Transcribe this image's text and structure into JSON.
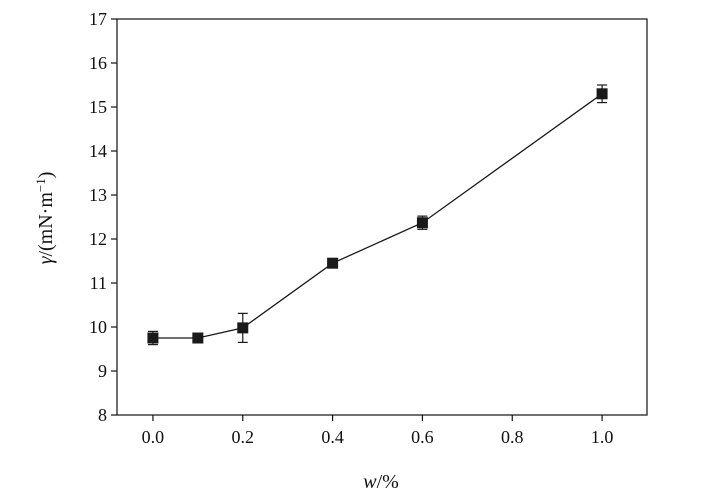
{
  "chart_data": {
    "type": "line",
    "xlabel_var": "w",
    "xlabel_unit": "/%",
    "ylabel_var": "γ",
    "ylabel_unit": "/(mN·m",
    "ylabel_exp": "−1",
    "ylabel_close": ")",
    "xlim": [
      -0.08,
      1.1
    ],
    "ylim": [
      8,
      17
    ],
    "x_ticks": [
      0.0,
      0.2,
      0.4,
      0.6,
      0.8,
      1.0
    ],
    "x_tick_labels": [
      "0.0",
      "0.2",
      "0.4",
      "0.6",
      "0.8",
      "1.0"
    ],
    "y_ticks": [
      8,
      9,
      10,
      11,
      12,
      13,
      14,
      15,
      16,
      17
    ],
    "y_tick_labels": [
      "8",
      "9",
      "10",
      "11",
      "12",
      "13",
      "14",
      "15",
      "16",
      "17"
    ],
    "grid": false,
    "series": [
      {
        "x": [
          0.0,
          0.1,
          0.2,
          0.4,
          0.6,
          1.0
        ],
        "y": [
          9.75,
          9.75,
          9.98,
          11.45,
          12.37,
          15.3
        ],
        "yerr": [
          0.15,
          0.05,
          0.33,
          0.07,
          0.15,
          0.2
        ],
        "marker": "square",
        "color": "#1a1a1a"
      }
    ]
  }
}
